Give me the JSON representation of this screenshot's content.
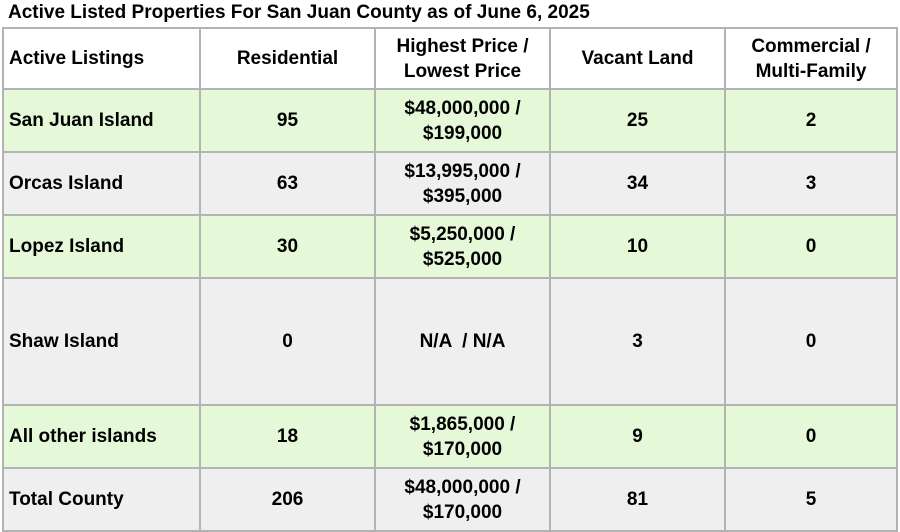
{
  "title": "Active Listed Properties For San Juan County as of June 6, 2025",
  "colors": {
    "row_green": "#e5f8d8",
    "row_grey": "#efefef",
    "border": "#b3b3b3"
  },
  "table": {
    "headers": {
      "active_listings": "Active Listings",
      "residential": "Residential",
      "price_line1": "Highest Price /",
      "price_line2": "Lowest Price",
      "vacant_land": "Vacant Land",
      "commercial_line1": "Commercial /",
      "commercial_line2": "Multi-Family"
    },
    "rows": [
      {
        "area": "San Juan Island",
        "residential": "95",
        "price_high": "$48,000,000 /",
        "price_low": "$199,000",
        "vacant_land": "25",
        "commercial": "2"
      },
      {
        "area": "Orcas Island",
        "residential": "63",
        "price_high": "$13,995,000 /",
        "price_low": "$395,000",
        "vacant_land": "34",
        "commercial": "3"
      },
      {
        "area": "Lopez Island",
        "residential": "30",
        "price_high": "$5,250,000 /",
        "price_low": "$525,000",
        "vacant_land": "10",
        "commercial": "0"
      },
      {
        "area": "Shaw Island",
        "residential": "0",
        "price_high": "N/A  / N/A",
        "price_low": "",
        "vacant_land": "3",
        "commercial": "0"
      },
      {
        "area": "All other islands",
        "residential": "18",
        "price_high": "$1,865,000 /",
        "price_low": "$170,000",
        "vacant_land": "9",
        "commercial": "0"
      },
      {
        "area": "Total County",
        "residential": "206",
        "price_high": "$48,000,000 /",
        "price_low": "$170,000",
        "vacant_land": "81",
        "commercial": "5"
      }
    ]
  }
}
